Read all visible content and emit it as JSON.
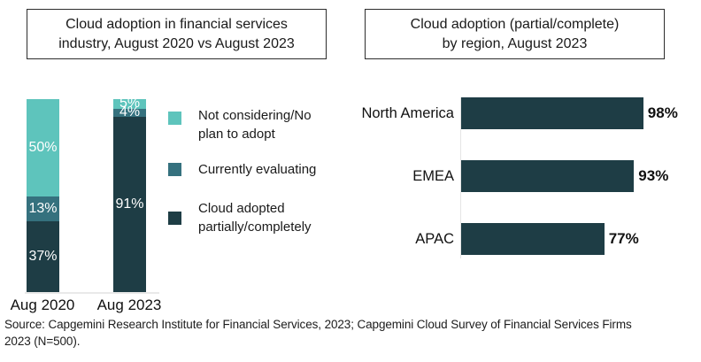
{
  "colors": {
    "light_teal": "#5EC4BC",
    "medium_teal": "#35717E",
    "dark_teal": "#1E3D45",
    "axis_line": "#E9E9E9",
    "text": "#1A1A1A"
  },
  "left_panel": {
    "title_lines": [
      "Cloud adoption in financial services",
      "industry, August 2020 vs August 2023"
    ]
  },
  "right_panel": {
    "title_lines": [
      "Cloud adoption (partial/complete)",
      "by region, August 2023"
    ]
  },
  "chart_data": [
    {
      "type": "bar",
      "subtype": "stacked-vertical",
      "title": "Cloud adoption in financial services industry, August 2020 vs August 2023",
      "categories": [
        "Aug 2020",
        "Aug 2023"
      ],
      "series": [
        {
          "name": "Cloud adopted partially/completely",
          "values": [
            37,
            91
          ],
          "color": "#1E3D45"
        },
        {
          "name": "Currently evaluating",
          "values": [
            13,
            4
          ],
          "color": "#35717E"
        },
        {
          "name": "Not considering/No plan to adopt",
          "values": [
            50,
            5
          ],
          "color": "#5EC4BC"
        }
      ],
      "value_format": "percent",
      "ylim": [
        0,
        100
      ],
      "legend_position": "right",
      "grid": false
    },
    {
      "type": "bar",
      "subtype": "horizontal",
      "title": "Cloud adoption (partial/complete) by region, August 2023",
      "categories": [
        "North America",
        "EMEA",
        "APAC"
      ],
      "values": [
        98,
        93,
        77
      ],
      "value_format": "percent",
      "xlim": [
        0,
        100
      ],
      "bar_color": "#1E3D45",
      "grid": false
    }
  ],
  "source_lines": [
    "Source: Capgemini Research Institute for Financial Services, 2023; Capgemini Cloud Survey of Financial Services Firms",
    "2023 (N=500)."
  ]
}
